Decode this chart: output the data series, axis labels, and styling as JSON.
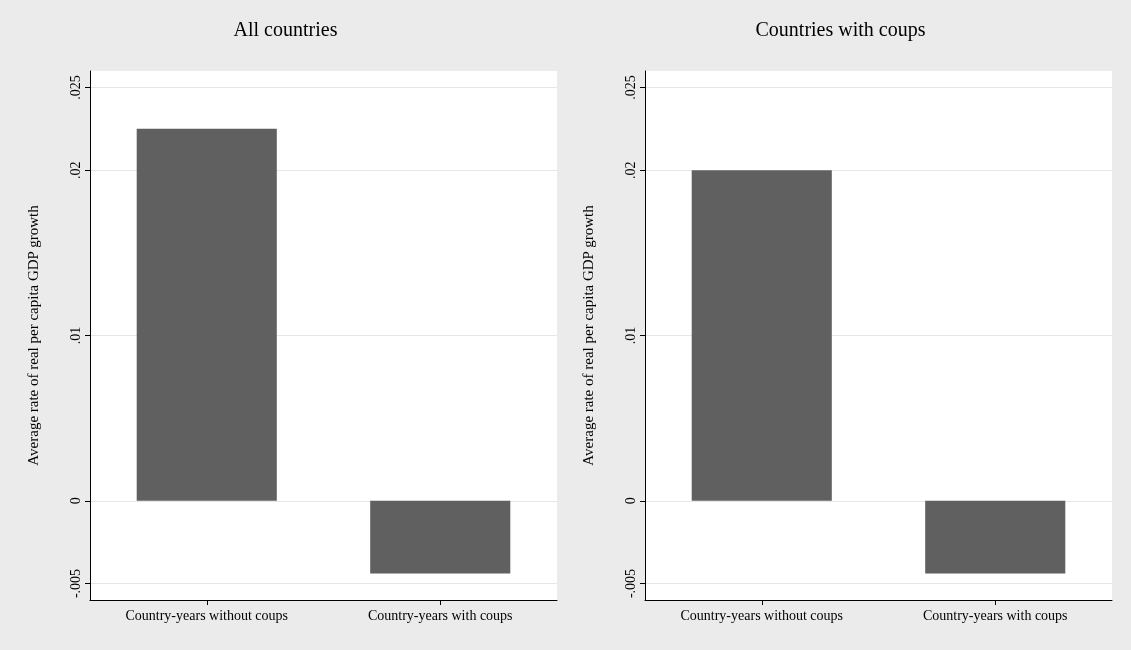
{
  "chart_data": [
    {
      "type": "bar",
      "title": "All countries",
      "ylabel": "Average rate of real per capita GDP growth",
      "categories": [
        "Country-years without coups",
        "Country-years with coups"
      ],
      "values": [
        0.0225,
        -0.0044
      ],
      "color": "#606060",
      "ylim": [
        -0.006,
        0.026
      ],
      "yticks": [
        {
          "value": -0.005,
          "label": "-.005"
        },
        {
          "value": 0,
          "label": "0"
        },
        {
          "value": 0.01,
          "label": ".01"
        },
        {
          "value": 0.02,
          "label": ".02"
        },
        {
          "value": 0.025,
          "label": ".025"
        }
      ],
      "grid": "y"
    },
    {
      "type": "bar",
      "title": "Countries with coups",
      "ylabel": "Average rate of real per capita GDP growth",
      "categories": [
        "Country-years without coups",
        "Country-years with coups"
      ],
      "values": [
        0.02,
        -0.0044
      ],
      "color": "#606060",
      "ylim": [
        -0.006,
        0.026
      ],
      "yticks": [
        {
          "value": -0.005,
          "label": "-.005"
        },
        {
          "value": 0,
          "label": "0"
        },
        {
          "value": 0.01,
          "label": ".01"
        },
        {
          "value": 0.02,
          "label": ".02"
        },
        {
          "value": 0.025,
          "label": ".025"
        }
      ],
      "grid": "y"
    }
  ]
}
